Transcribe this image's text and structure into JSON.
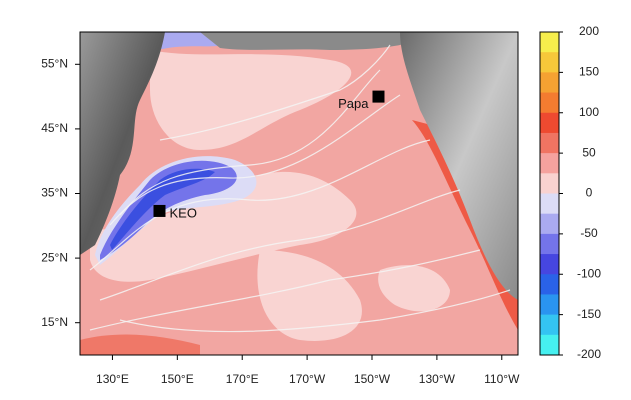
{
  "map": {
    "xlim": [
      120,
      255
    ],
    "ylim": [
      10,
      60
    ],
    "xticks": [
      {
        "value": 130,
        "label": "130°E"
      },
      {
        "value": 150,
        "label": "150°E"
      },
      {
        "value": 170,
        "label": "170°E"
      },
      {
        "value": 190,
        "label": "170°W"
      },
      {
        "value": 210,
        "label": "150°W"
      },
      {
        "value": 230,
        "label": "130°W"
      },
      {
        "value": 250,
        "label": "110°W"
      }
    ],
    "yticks": [
      {
        "value": 55,
        "label": "55°N"
      },
      {
        "value": 45,
        "label": "45°N"
      },
      {
        "value": 35,
        "label": "35°N"
      },
      {
        "value": 25,
        "label": "25°N"
      },
      {
        "value": 15,
        "label": "15°N"
      }
    ],
    "stations": [
      {
        "name": "KEO",
        "lon": 144.5,
        "lat": 32.3
      },
      {
        "name": "Papa",
        "lon": 212,
        "lat": 50
      }
    ]
  },
  "colorbar": {
    "lim": [
      -200,
      200
    ],
    "ticks": [
      200,
      150,
      100,
      50,
      0,
      -50,
      -100,
      -150,
      -200
    ],
    "colors": [
      "#f6ee4c",
      "#f6c83a",
      "#f5a232",
      "#f47c30",
      "#ee4a30",
      "#f07462",
      "#f5a29e",
      "#f9d2d0",
      "#dcdcf6",
      "#aaaaf0",
      "#7474ea",
      "#4646e0",
      "#2a62e8",
      "#2a94f0",
      "#34c4f2",
      "#46f0f0"
    ]
  }
}
